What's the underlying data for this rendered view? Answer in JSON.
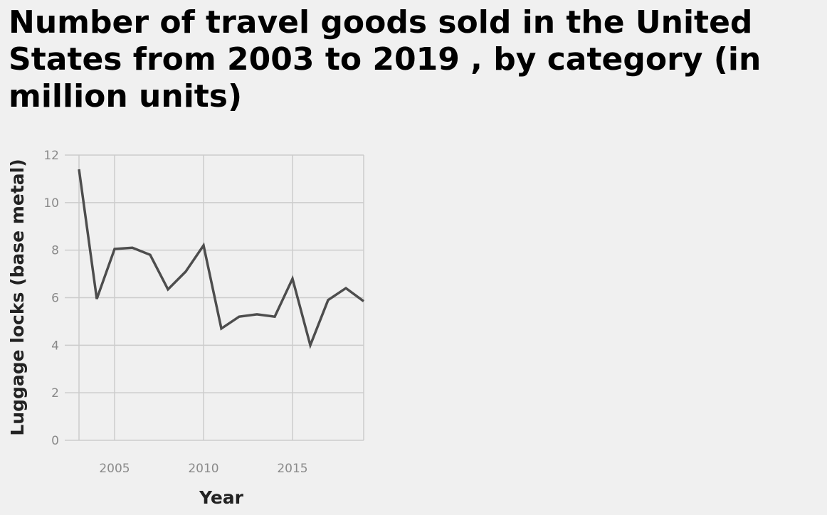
{
  "chart_data": {
    "type": "line",
    "title": "Number of travel goods sold in the United States from 2003 to 2019 , by category (in million units)",
    "xlabel": "Year",
    "ylabel": "Luggage locks (base metal)",
    "xlim": [
      2003,
      2019
    ],
    "ylim": [
      0,
      12
    ],
    "x_ticks": [
      2005,
      2010,
      2015
    ],
    "y_ticks": [
      0,
      2,
      4,
      6,
      8,
      10,
      12
    ],
    "grid": true,
    "line_color": "#4d4d4d",
    "grid_color": "#cccccc",
    "series": [
      {
        "x": [
          2003,
          2004,
          2005,
          2006,
          2007,
          2008,
          2009,
          2010,
          2011,
          2012,
          2013,
          2014,
          2015,
          2016,
          2017,
          2018,
          2019
        ],
        "y": [
          11.4,
          5.95,
          8.05,
          8.1,
          7.8,
          6.35,
          7.1,
          8.2,
          4.7,
          5.2,
          5.3,
          5.2,
          6.8,
          4.0,
          5.9,
          6.4,
          5.85
        ]
      }
    ]
  }
}
